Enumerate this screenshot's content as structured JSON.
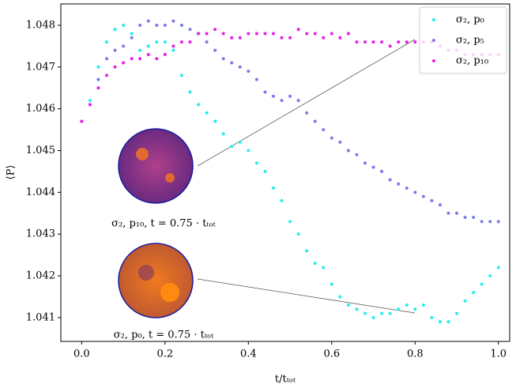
{
  "chart_data": {
    "type": "scatter",
    "xlabel": "t/tₜₒₜ",
    "ylabel": "⟨P⟩",
    "annotations": [
      "σ₂, p₁₀, t = 0.75 · tₜₒₜ",
      "σ₂, p₀, t = 0.75 · tₜₒₜ"
    ],
    "legend": "upper right",
    "xlim": [
      -0.05,
      1.027
    ],
    "ylim": [
      1.04043,
      1.04851
    ],
    "xticks": [
      {
        "value": 0,
        "label": "0.0"
      },
      0.2,
      0.4,
      0.6,
      0.8,
      {
        "value": 1,
        "label": "1.0"
      }
    ],
    "yticks": [
      1.041,
      1.042,
      1.043,
      1.044,
      1.045,
      1.046,
      1.047,
      1.048
    ],
    "x": [
      0,
      0.02,
      0.04,
      0.06,
      0.08,
      0.1,
      0.12,
      0.14,
      0.16,
      0.18,
      0.2,
      0.22,
      0.24,
      0.26,
      0.28,
      0.3,
      0.32,
      0.34,
      0.36,
      0.38,
      0.4,
      0.42,
      0.44,
      0.46,
      0.48,
      0.5,
      0.52,
      0.54,
      0.56,
      0.58,
      0.6,
      0.62,
      0.64,
      0.66,
      0.68,
      0.7,
      0.72,
      0.74,
      0.76,
      0.78,
      0.8,
      0.82,
      0.84,
      0.86,
      0.88,
      0.9,
      0.92,
      0.94,
      0.96,
      0.98,
      1
    ],
    "series": [
      {
        "name": "σ₂, p₀",
        "color": "#22eeee",
        "values": [
          1.0457,
          1.0462,
          1.047,
          1.0476,
          1.0479,
          1.048,
          1.0478,
          1.0474,
          1.0475,
          1.0476,
          1.0476,
          1.0474,
          1.0468,
          1.0464,
          1.0461,
          1.0459,
          1.0457,
          1.0454,
          1.0451,
          1.0452,
          1.045,
          1.0447,
          1.0445,
          1.0441,
          1.0438,
          1.0433,
          1.043,
          1.0426,
          1.0423,
          1.0422,
          1.0418,
          1.0415,
          1.0413,
          1.0412,
          1.0411,
          1.041,
          1.0411,
          1.0411,
          1.0412,
          1.0413,
          1.0412,
          1.0413,
          1.041,
          1.0409,
          1.0409,
          1.0411,
          1.0414,
          1.0416,
          1.0418,
          1.042,
          1.0422
        ]
      },
      {
        "name": "σ₂, p₅",
        "color": "#7b7be8",
        "values": [
          1.0457,
          1.0461,
          1.0467,
          1.0472,
          1.0474,
          1.0475,
          1.0477,
          1.048,
          1.0481,
          1.048,
          1.048,
          1.0481,
          1.048,
          1.0479,
          1.0478,
          1.0476,
          1.0474,
          1.0472,
          1.0471,
          1.047,
          1.0469,
          1.0467,
          1.0464,
          1.0463,
          1.0462,
          1.0463,
          1.0462,
          1.0459,
          1.0457,
          1.0455,
          1.0453,
          1.0452,
          1.045,
          1.0449,
          1.0447,
          1.0446,
          1.0445,
          1.0443,
          1.0442,
          1.0441,
          1.044,
          1.0439,
          1.0438,
          1.0437,
          1.0435,
          1.0435,
          1.0434,
          1.0434,
          1.0433,
          1.0433,
          1.0433
        ]
      },
      {
        "name": "σ₂, p₁₀",
        "color": "#e81ee8",
        "values": [
          1.0457,
          1.0461,
          1.0465,
          1.0468,
          1.047,
          1.0471,
          1.0472,
          1.0472,
          1.0473,
          1.0472,
          1.0473,
          1.0475,
          1.0476,
          1.0476,
          1.0478,
          1.0478,
          1.0479,
          1.0478,
          1.0477,
          1.0477,
          1.0478,
          1.0478,
          1.0478,
          1.0478,
          1.0477,
          1.0477,
          1.0479,
          1.0478,
          1.0478,
          1.0477,
          1.0478,
          1.0477,
          1.0478,
          1.0476,
          1.0476,
          1.0476,
          1.0476,
          1.0475,
          1.0476,
          1.0476,
          1.0476,
          1.0476,
          1.0476,
          1.0475,
          1.0474,
          1.0474,
          1.0473,
          1.0473,
          1.0473,
          1.0473,
          1.0473
        ]
      }
    ]
  }
}
